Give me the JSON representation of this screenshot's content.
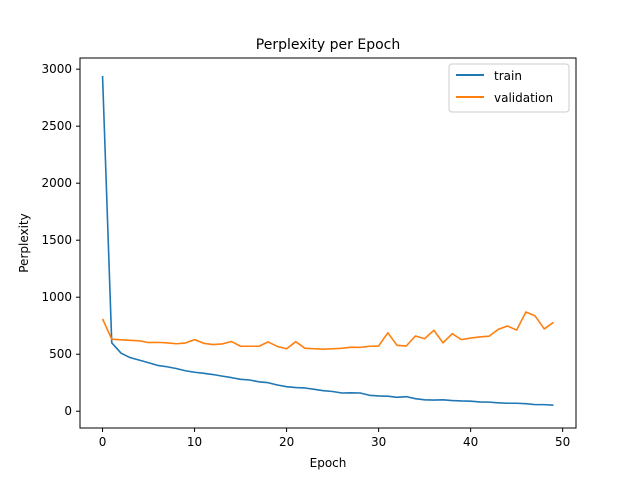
{
  "chart_data": {
    "type": "line",
    "title": "Perplexity per Epoch",
    "xlabel": "Epoch",
    "ylabel": "Perplexity",
    "xlim": [
      -2.45,
      51.45
    ],
    "ylim": [
      -147,
      3098
    ],
    "xticks": [
      0,
      10,
      20,
      30,
      40,
      50
    ],
    "yticks": [
      0,
      500,
      1000,
      1500,
      2000,
      2500,
      3000
    ],
    "grid": false,
    "legend": "top-right",
    "x": [
      0,
      1,
      2,
      3,
      4,
      5,
      6,
      7,
      8,
      9,
      10,
      11,
      12,
      13,
      14,
      15,
      16,
      17,
      18,
      19,
      20,
      21,
      22,
      23,
      24,
      25,
      26,
      27,
      28,
      29,
      30,
      31,
      32,
      33,
      34,
      35,
      36,
      37,
      38,
      39,
      40,
      41,
      42,
      43,
      44,
      45,
      46,
      47,
      48,
      49
    ],
    "series": [
      {
        "name": "train",
        "color": "#1f77b4",
        "values": [
          2940,
          600,
          510,
          470,
          448,
          425,
          402,
          390,
          375,
          355,
          342,
          333,
          322,
          308,
          295,
          280,
          274,
          258,
          250,
          230,
          215,
          208,
          204,
          192,
          180,
          173,
          160,
          162,
          160,
          140,
          134,
          132,
          122,
          128,
          110,
          100,
          98,
          100,
          94,
          90,
          88,
          82,
          80,
          74,
          70,
          70,
          66,
          58,
          58,
          53
        ]
      },
      {
        "name": "validation",
        "color": "#ff7f0e",
        "values": [
          810,
          632,
          626,
          622,
          618,
          602,
          604,
          600,
          592,
          598,
          628,
          596,
          585,
          590,
          612,
          570,
          570,
          570,
          608,
          568,
          548,
          610,
          552,
          548,
          544,
          548,
          552,
          562,
          560,
          570,
          572,
          688,
          578,
          572,
          660,
          636,
          710,
          600,
          680,
          628,
          642,
          652,
          658,
          718,
          748,
          712,
          870,
          836,
          722,
          780
        ]
      }
    ]
  }
}
